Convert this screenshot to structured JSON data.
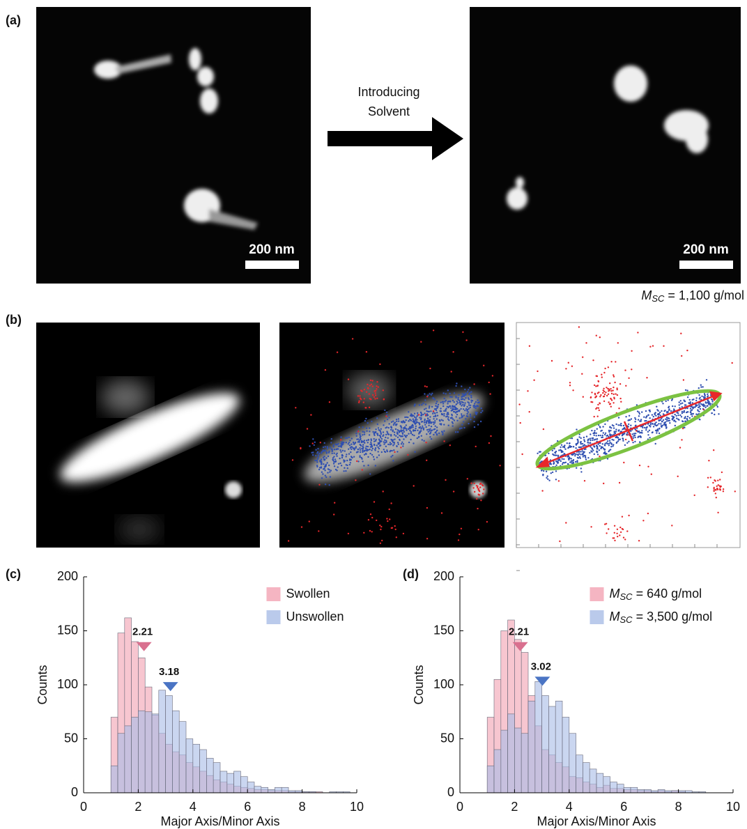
{
  "panel_labels": [
    "(a)",
    "(b)",
    "(c)",
    "(d)"
  ],
  "panel_a": {
    "arrow_text": [
      "Introducing",
      "Solvent"
    ],
    "scale_bar_left": "200 nm",
    "scale_bar_right": "200 nm",
    "molar_mass": "MSC = 1,100 g/mol"
  },
  "chart_data": [
    {
      "type": "histogram",
      "xlabel": "Major Axis/Minor Axis",
      "ylabel": "Counts",
      "bins": [
        1,
        1.25,
        1.5,
        1.75,
        2,
        2.25,
        2.5,
        2.75,
        3,
        3.25,
        3.5,
        3.75,
        4,
        4.25,
        4.5,
        4.75,
        5,
        5.25,
        5.5,
        5.75,
        6,
        6.25,
        6.5,
        6.75,
        7,
        7.25,
        7.5,
        7.75,
        8,
        8.25,
        8.5,
        8.75,
        9,
        9.25,
        9.5,
        9.75,
        10
      ],
      "series": [
        {
          "name": "Swollen",
          "color": "#f2a3b3",
          "values": [
            70,
            148,
            162,
            140,
            125,
            98,
            72,
            55,
            45,
            38,
            35,
            28,
            24,
            20,
            16,
            12,
            10,
            8,
            6,
            5,
            4,
            3,
            3,
            2,
            2,
            2,
            1,
            1,
            1,
            1,
            1,
            0,
            0,
            0,
            0,
            0
          ]
        },
        {
          "name": "Unswollen",
          "color": "#a9bde6",
          "values": [
            25,
            55,
            62,
            70,
            76,
            75,
            73,
            95,
            90,
            76,
            66,
            50,
            45,
            40,
            32,
            28,
            20,
            18,
            20,
            15,
            10,
            6,
            5,
            3,
            5,
            5,
            2,
            2,
            1,
            1,
            0,
            0,
            1,
            1,
            1,
            0
          ]
        }
      ],
      "annotations": [
        {
          "label": "2.21",
          "x": 2.21,
          "y": 135,
          "color": "#d9708f"
        },
        {
          "label": "3.18",
          "x": 3.18,
          "y": 98,
          "color": "#4a74c4"
        }
      ],
      "xlim": [
        0,
        10
      ],
      "ylim": [
        0,
        200
      ],
      "xticks": [
        0,
        2,
        4,
        6,
        8,
        10
      ],
      "yticks": [
        0,
        50,
        100,
        150,
        200
      ],
      "legend": "upper right"
    },
    {
      "type": "histogram",
      "xlabel": "Major Axis/Minor Axis",
      "ylabel": "Counts",
      "bins": [
        1,
        1.25,
        1.5,
        1.75,
        2,
        2.25,
        2.5,
        2.75,
        3,
        3.25,
        3.5,
        3.75,
        4,
        4.25,
        4.5,
        4.75,
        5,
        5.25,
        5.5,
        5.75,
        6,
        6.25,
        6.5,
        6.75,
        7,
        7.25,
        7.5,
        7.75,
        8,
        8.25,
        8.5,
        8.75,
        9,
        9.25,
        9.5,
        9.75,
        10
      ],
      "series": [
        {
          "name": "MSC = 640 g/mol",
          "color": "#f2a3b3",
          "values": [
            70,
            105,
            150,
            160,
            142,
            130,
            90,
            62,
            40,
            35,
            28,
            24,
            15,
            14,
            10,
            8,
            5,
            7,
            4,
            4,
            3,
            3,
            2,
            2,
            1,
            2,
            1,
            2,
            1,
            0,
            0,
            0,
            0,
            0,
            0,
            0
          ]
        },
        {
          "name": "MSC = 3,500 g/mol",
          "color": "#a9bde6",
          "values": [
            25,
            40,
            58,
            73,
            60,
            55,
            85,
            103,
            90,
            80,
            85,
            70,
            55,
            35,
            28,
            22,
            18,
            15,
            10,
            8,
            5,
            5,
            3,
            3,
            2,
            3,
            2,
            2,
            2,
            2,
            1,
            1,
            0,
            0,
            0,
            0
          ]
        }
      ],
      "annotations": [
        {
          "label": "2.21",
          "x": 2.21,
          "y": 135,
          "color": "#d9708f"
        },
        {
          "label": "3.02",
          "x": 3.02,
          "y": 103,
          "color": "#4a74c4"
        }
      ],
      "xlim": [
        0,
        10
      ],
      "ylim": [
        0,
        200
      ],
      "xticks": [
        0,
        2,
        4,
        6,
        8,
        10
      ],
      "yticks": [
        0,
        50,
        100,
        150,
        200
      ],
      "legend": "upper right"
    }
  ]
}
